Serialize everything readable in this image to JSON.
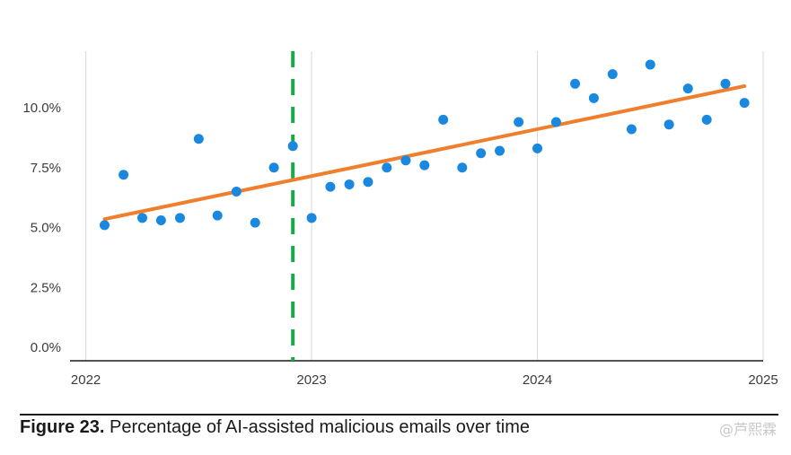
{
  "chart_data": {
    "type": "scatter",
    "title": "",
    "xlabel": "",
    "ylabel": "",
    "x_ticks": [
      "2022",
      "2023",
      "2024",
      "2025"
    ],
    "y_ticks": [
      "0.0%",
      "2.5%",
      "5.0%",
      "7.5%",
      "10.0%"
    ],
    "xlim": [
      2021.93,
      2025.0
    ],
    "ylim": [
      0,
      12.5
    ],
    "grid": "vertical",
    "series": [
      {
        "name": "AI-assisted malicious emails (%)",
        "marker_color": "#1a88de",
        "x": [
          2022.083,
          2022.167,
          2022.25,
          2022.333,
          2022.417,
          2022.5,
          2022.583,
          2022.667,
          2022.75,
          2022.833,
          2022.917,
          2023.0,
          2023.083,
          2023.167,
          2023.25,
          2023.333,
          2023.417,
          2023.5,
          2023.583,
          2023.667,
          2023.75,
          2023.833,
          2023.917,
          2024.0,
          2024.083,
          2024.167,
          2024.25,
          2024.333,
          2024.417,
          2024.5,
          2024.583,
          2024.667,
          2024.75,
          2024.833,
          2024.917
        ],
        "values": [
          5.1,
          7.2,
          5.4,
          5.3,
          5.4,
          8.7,
          5.5,
          6.5,
          5.2,
          7.5,
          8.4,
          5.4,
          6.7,
          6.8,
          6.9,
          7.5,
          7.8,
          7.6,
          9.5,
          7.5,
          8.1,
          8.2,
          9.4,
          8.3,
          9.4,
          11.0,
          10.4,
          11.4,
          9.1,
          11.8,
          9.3,
          10.8,
          9.5,
          11.0,
          10.2
        ]
      }
    ],
    "trend_line": {
      "color": "#f07f2d",
      "start": [
        2022.083,
        5.35
      ],
      "end": [
        2024.917,
        10.9
      ]
    },
    "marker_line": {
      "color": "#1aa84b",
      "style": "dashed",
      "x": 2022.917
    }
  },
  "caption": {
    "figure_label": "Figure 23.",
    "text": " Percentage of AI-assisted malicious emails over time"
  },
  "watermark": "@芦熙霖"
}
